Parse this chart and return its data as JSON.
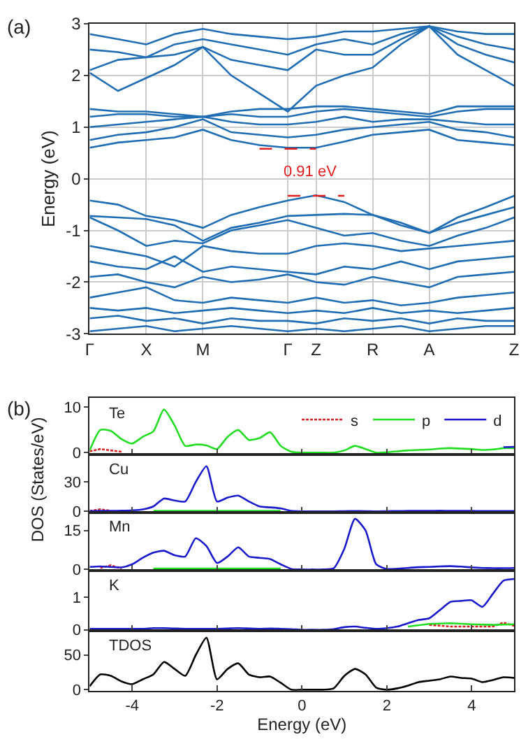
{
  "chart_data": [
    {
      "type": "line",
      "ylabel": "Energy (eV)",
      "annotations": [
        "(a)",
        "0.91 eV"
      ],
      "categories": [
        "Γ",
        null,
        "X",
        null,
        "M",
        null,
        null,
        "Γ",
        "Z",
        null,
        "R",
        null,
        "A",
        null,
        null,
        "Z"
      ],
      "ylim": [
        -3,
        3
      ],
      "yticks": [
        -3,
        -2,
        -1,
        0,
        1,
        2,
        3
      ],
      "grid": true,
      "series": [
        {
          "color": "#1f6db3",
          "values": [
            -0.42,
            -0.5,
            -0.72,
            -0.8,
            -0.95,
            -0.7,
            -0.55,
            -0.42,
            -0.32,
            -0.45,
            -0.7,
            -0.85,
            -1.05,
            -0.75,
            -0.55,
            -0.33
          ]
        },
        {
          "color": "#1f6db3",
          "values": [
            -0.72,
            -0.75,
            -0.78,
            -0.9,
            -1.2,
            -0.95,
            -0.85,
            -0.72,
            -0.7,
            -0.68,
            -0.7,
            -0.9,
            -1.05,
            -0.85,
            -0.7,
            -0.55
          ]
        },
        {
          "color": "#1f6db3",
          "values": [
            -0.75,
            -1.0,
            -1.3,
            -1.2,
            -1.25,
            -1.0,
            -0.9,
            -0.8,
            -0.95,
            -1.1,
            -1.05,
            -1.2,
            -1.3,
            -1.1,
            -0.95,
            -0.75
          ]
        },
        {
          "color": "#1f6db3",
          "values": [
            -1.3,
            -1.4,
            -1.5,
            -1.7,
            -1.3,
            -1.4,
            -1.45,
            -1.45,
            -1.3,
            -1.25,
            -1.3,
            -1.4,
            -1.35,
            -1.3,
            -1.25,
            -1.2
          ]
        },
        {
          "color": "#1f6db3",
          "values": [
            -1.6,
            -1.7,
            -1.75,
            -1.5,
            -1.8,
            -1.7,
            -1.75,
            -1.8,
            -1.85,
            -1.7,
            -1.75,
            -1.6,
            -1.75,
            -1.6,
            -1.55,
            -1.5
          ]
        },
        {
          "color": "#1f6db3",
          "values": [
            -1.9,
            -1.85,
            -2.0,
            -2.1,
            -1.9,
            -2.0,
            -1.95,
            -1.85,
            -2.0,
            -2.05,
            -1.9,
            -2.0,
            -2.1,
            -1.9,
            -1.85,
            -1.8
          ]
        },
        {
          "color": "#1f6db3",
          "values": [
            -2.3,
            -2.2,
            -2.1,
            -2.35,
            -2.4,
            -2.3,
            -2.35,
            -2.4,
            -2.3,
            -2.4,
            -2.35,
            -2.45,
            -2.4,
            -2.3,
            -2.25,
            -2.2
          ]
        },
        {
          "color": "#1f6db3",
          "values": [
            -2.5,
            -2.55,
            -2.5,
            -2.6,
            -2.55,
            -2.5,
            -2.55,
            -2.6,
            -2.55,
            -2.6,
            -2.5,
            -2.6,
            -2.55,
            -2.6,
            -2.55,
            -2.5
          ]
        },
        {
          "color": "#1f6db3",
          "values": [
            -2.7,
            -2.65,
            -2.75,
            -2.7,
            -2.8,
            -2.7,
            -2.75,
            -2.75,
            -2.8,
            -2.7,
            -2.75,
            -2.7,
            -2.8,
            -2.7,
            -2.75,
            -2.75
          ]
        },
        {
          "color": "#1f6db3",
          "values": [
            -2.95,
            -2.9,
            -2.85,
            -2.95,
            -2.9,
            -2.85,
            -2.9,
            -2.95,
            -2.9,
            -2.95,
            -2.9,
            -2.85,
            -2.95,
            -2.9,
            -2.85,
            -2.85
          ]
        },
        {
          "color": "#1f6db3",
          "values": [
            0.6,
            0.7,
            0.75,
            0.8,
            0.95,
            0.75,
            0.65,
            0.6,
            0.6,
            0.72,
            0.85,
            0.9,
            0.95,
            0.75,
            0.7,
            0.65
          ]
        },
        {
          "color": "#1f6db3",
          "values": [
            0.75,
            0.85,
            0.9,
            1.0,
            1.15,
            0.9,
            0.85,
            0.8,
            0.85,
            0.95,
            1.0,
            1.05,
            1.1,
            0.95,
            0.9,
            0.8
          ]
        },
        {
          "color": "#1f6db3",
          "values": [
            1.0,
            1.05,
            1.1,
            1.15,
            1.2,
            1.1,
            1.05,
            1.05,
            1.1,
            1.2,
            1.1,
            1.15,
            1.15,
            1.1,
            1.05,
            1.05
          ]
        },
        {
          "color": "#1f6db3",
          "values": [
            1.2,
            1.25,
            1.25,
            1.2,
            1.2,
            1.25,
            1.2,
            1.2,
            1.3,
            1.35,
            1.3,
            1.25,
            1.2,
            1.3,
            1.35,
            1.35
          ]
        },
        {
          "color": "#1f6db3",
          "values": [
            1.35,
            1.3,
            1.3,
            1.25,
            1.2,
            1.3,
            1.35,
            1.35,
            1.4,
            1.4,
            1.35,
            1.3,
            1.25,
            1.4,
            1.4,
            1.4
          ]
        },
        {
          "color": "#1f6db3",
          "values": [
            2.05,
            1.7,
            1.95,
            2.2,
            2.55,
            2.0,
            1.65,
            1.3,
            1.8,
            2.0,
            2.15,
            2.6,
            2.95,
            2.4,
            2.1,
            1.8
          ]
        },
        {
          "color": "#1f6db3",
          "values": [
            2.1,
            2.3,
            2.35,
            2.4,
            2.55,
            2.3,
            2.2,
            2.1,
            2.5,
            2.4,
            2.4,
            2.7,
            2.95,
            2.6,
            2.4,
            2.25
          ]
        },
        {
          "color": "#1f6db3",
          "values": [
            2.5,
            2.45,
            2.35,
            2.6,
            2.7,
            2.6,
            2.5,
            2.4,
            2.6,
            2.7,
            2.6,
            2.8,
            2.95,
            2.75,
            2.6,
            2.5
          ]
        },
        {
          "color": "#1f6db3",
          "values": [
            2.8,
            2.7,
            2.6,
            2.8,
            2.9,
            2.8,
            2.75,
            2.7,
            2.75,
            2.85,
            2.85,
            2.9,
            2.95,
            2.85,
            2.8,
            2.8
          ]
        },
        {
          "color": "#e02020",
          "line_style": "dashed",
          "values": [
            null,
            null,
            null,
            null,
            null,
            null,
            0.58,
            0.58,
            0.58,
            null,
            null,
            null,
            null,
            null,
            null,
            null
          ]
        },
        {
          "color": "#e02020",
          "line_style": "dashed",
          "values": [
            null,
            null,
            null,
            null,
            null,
            null,
            null,
            -0.33,
            -0.33,
            -0.33,
            null,
            null,
            null,
            null,
            null,
            null
          ]
        }
      ]
    },
    {
      "type": "line",
      "title": "Te",
      "annotations": [
        "(b)"
      ],
      "legend": "top right",
      "tick_labels": "y",
      "x": [
        -5,
        -4.75,
        -4.5,
        -4.25,
        -4,
        -3.75,
        -3.5,
        -3.25,
        -3,
        -2.75,
        -2.5,
        -2.25,
        -2,
        -1.75,
        -1.5,
        -1.25,
        -1,
        -0.75,
        -0.5,
        -0.25,
        0,
        0.25,
        0.5,
        0.75,
        1,
        1.25,
        1.5,
        1.75,
        2,
        2.25,
        2.5,
        2.75,
        3,
        3.25,
        3.5,
        3.75,
        4,
        4.25,
        4.5,
        4.75,
        5
      ],
      "xlim": [
        -5,
        5
      ],
      "xticks": [
        -4,
        -2,
        0,
        2,
        4
      ],
      "ylim": [
        -0.4,
        12
      ],
      "yticks": [
        0,
        10
      ],
      "series": [
        {
          "name": "s",
          "color": "#d42020",
          "line_style": "dotted",
          "x": [
            -5,
            -4.75,
            -4.5,
            -4.25
          ],
          "values": [
            0.3,
            0.8,
            0.5,
            0.2
          ]
        },
        {
          "name": "p",
          "color": "#22dd22",
          "values": [
            0.5,
            5.0,
            4.8,
            3.0,
            2.0,
            3.5,
            4.7,
            9.5,
            6.0,
            1.5,
            1.8,
            1.6,
            0.8,
            3.5,
            5.0,
            2.8,
            3.2,
            4.5,
            1.5,
            0.2,
            0,
            0,
            0,
            0,
            0.5,
            1.5,
            0.8,
            0,
            0.1,
            0.3,
            0.5,
            0.6,
            0.7,
            0.9,
            1.0,
            0.9,
            0.8,
            0.6,
            0.7,
            1.0,
            1.0
          ]
        },
        {
          "name": "d",
          "color": "#1a1acc",
          "x": [
            4.75,
            5
          ],
          "values": [
            1.2,
            1.3
          ]
        }
      ]
    },
    {
      "type": "line",
      "title": "Cu",
      "tick_labels": "y",
      "x": [
        -5,
        -4.75,
        -4.5,
        -4.25,
        -4,
        -3.75,
        -3.5,
        -3.25,
        -3,
        -2.75,
        -2.5,
        -2.25,
        -2,
        -1.75,
        -1.5,
        -1.25,
        -1,
        -0.75,
        -0.5,
        -0.25,
        0,
        0.25,
        0.5,
        0.75,
        1,
        1.25,
        1.5,
        1.75,
        2,
        2.25,
        2.5,
        2.75,
        3,
        3.25,
        3.5,
        3.75,
        4,
        4.25,
        4.5,
        4.75,
        5
      ],
      "xlim": [
        -5,
        5
      ],
      "xticks": [
        -4,
        -2,
        0,
        2,
        4
      ],
      "ylim": [
        -1,
        58
      ],
      "yticks": [
        0,
        30
      ],
      "series": [
        {
          "color": "#d42020",
          "line_style": "dotted",
          "x": [
            -5,
            -4.75,
            -4.5
          ],
          "values": [
            0.5,
            2,
            0.5
          ]
        },
        {
          "color": "#22dd22",
          "x": [
            -3.5,
            -3,
            -2.5,
            -2,
            -1.5,
            -1,
            -0.5
          ],
          "values": [
            0.5,
            0.5,
            0.5,
            0.5,
            0.5,
            0.5,
            0.5
          ]
        },
        {
          "color": "#1a1acc",
          "values": [
            0.3,
            0.5,
            0.4,
            0.6,
            1.0,
            2.0,
            5.0,
            13,
            11,
            10,
            30,
            46,
            10,
            14,
            16,
            10,
            5,
            4,
            3,
            0.5,
            0,
            0,
            0,
            0,
            0.2,
            0.3,
            0.2,
            0,
            0.2,
            0.3,
            0.4,
            0.5,
            0.5,
            0.6,
            0.5,
            0.4,
            0.4,
            0.3,
            0.3,
            0.3,
            0.3
          ]
        }
      ]
    },
    {
      "type": "line",
      "title": "Mn",
      "ylabel": "DOS (States/eV)",
      "tick_labels": "y",
      "x": [
        -5,
        -4.75,
        -4.5,
        -4.25,
        -4,
        -3.75,
        -3.5,
        -3.25,
        -3,
        -2.75,
        -2.5,
        -2.25,
        -2,
        -1.75,
        -1.5,
        -1.25,
        -1,
        -0.75,
        -0.5,
        -0.25,
        0,
        0.25,
        0.5,
        0.75,
        1,
        1.25,
        1.5,
        1.75,
        2,
        2.25,
        2.5,
        2.75,
        3,
        3.25,
        3.5,
        3.75,
        4,
        4.25,
        4.5,
        4.75,
        5
      ],
      "xlim": [
        -5,
        5
      ],
      "xticks": [
        -4,
        -2,
        0,
        2,
        4
      ],
      "ylim": [
        -0.5,
        22
      ],
      "yticks": [
        0,
        15
      ],
      "series": [
        {
          "color": "#d42020",
          "line_style": "dotted",
          "x": [
            -4.75,
            -4.5,
            -4.25
          ],
          "values": [
            0.6,
            1.6,
            0.4
          ]
        },
        {
          "color": "#22dd22",
          "x": [
            -3.5,
            -3,
            -2.5,
            -2,
            -1.5,
            -1,
            -0.5
          ],
          "values": [
            0.4,
            0.4,
            0.4,
            0.4,
            0.4,
            0.4,
            0.4
          ]
        },
        {
          "color": "#1a1acc",
          "values": [
            1,
            1.2,
            1.0,
            0.8,
            2,
            4.5,
            6.5,
            7.2,
            5.5,
            5.0,
            12,
            9,
            2.5,
            5,
            8.5,
            5,
            4.5,
            4,
            2,
            0.2,
            0,
            0,
            0,
            0.5,
            8,
            19.5,
            15,
            2,
            0.2,
            0.3,
            0.6,
            0.9,
            1,
            1.2,
            1.3,
            1.1,
            0.8,
            0.6,
            0.5,
            0.5,
            0.6
          ]
        }
      ]
    },
    {
      "type": "line",
      "title": "K",
      "tick_labels": "y",
      "x": [
        -5,
        -4.75,
        -4.5,
        -4.25,
        -4,
        -3.75,
        -3.5,
        -3.25,
        -3,
        -2.75,
        -2.5,
        -2.25,
        -2,
        -1.75,
        -1.5,
        -1.25,
        -1,
        -0.75,
        -0.5,
        -0.25,
        0,
        0.25,
        0.5,
        0.75,
        1,
        1.25,
        1.5,
        1.75,
        2,
        2.25,
        2.5,
        2.75,
        3,
        3.25,
        3.5,
        3.75,
        4,
        4.25,
        4.5,
        4.75,
        5
      ],
      "xlim": [
        -5,
        5
      ],
      "xticks": [
        -4,
        -2,
        0,
        2,
        4
      ],
      "ylim": [
        -0.03,
        1.8
      ],
      "yticks": [
        0,
        1
      ],
      "series": [
        {
          "color": "#d42020",
          "line_style": "dotted",
          "x": [
            3,
            3.5,
            4,
            4.5,
            4.75,
            5
          ],
          "values": [
            0.15,
            0.1,
            0.1,
            0.1,
            0.22,
            0.12
          ]
        },
        {
          "color": "#22dd22",
          "x": [
            2.5,
            3,
            3.5,
            4,
            4.5,
            5
          ],
          "values": [
            0.1,
            0.18,
            0.2,
            0.17,
            0.15,
            0.17
          ]
        },
        {
          "color": "#1a1acc",
          "values": [
            0.03,
            0.03,
            0.03,
            0.03,
            0.03,
            0.03,
            0.05,
            0.05,
            0.04,
            0.03,
            0.03,
            0.03,
            0.03,
            0.04,
            0.05,
            0.04,
            0.03,
            0.04,
            0.03,
            0.02,
            0,
            0,
            0,
            0.02,
            0.08,
            0.1,
            0.06,
            0.03,
            0.05,
            0.1,
            0.2,
            0.3,
            0.35,
            0.6,
            0.85,
            0.88,
            0.9,
            0.7,
            1.1,
            1.5,
            1.55
          ]
        }
      ]
    },
    {
      "type": "line",
      "title": "TDOS",
      "xlabel": "Energy (eV)",
      "x": [
        -5,
        -4.75,
        -4.5,
        -4.25,
        -4,
        -3.75,
        -3.5,
        -3.25,
        -3,
        -2.75,
        -2.5,
        -2.25,
        -2,
        -1.75,
        -1.5,
        -1.25,
        -1,
        -0.75,
        -0.5,
        -0.25,
        0,
        0.25,
        0.5,
        0.75,
        1,
        1.25,
        1.5,
        1.75,
        2,
        2.25,
        2.5,
        2.75,
        3,
        3.25,
        3.5,
        3.75,
        4,
        4.25,
        4.5,
        4.75,
        5
      ],
      "xlim": [
        -5,
        5
      ],
      "xticks": [
        -4,
        -2,
        0,
        2,
        4
      ],
      "ylim": [
        -1.5,
        85
      ],
      "yticks": [
        0,
        50
      ],
      "series": [
        {
          "color": "#000000",
          "values": [
            5,
            22,
            20,
            12,
            8,
            15,
            22,
            40,
            30,
            20,
            50,
            75,
            15,
            30,
            38,
            22,
            18,
            19,
            10,
            0,
            0,
            0,
            0,
            2,
            20,
            30,
            22,
            3,
            0,
            2,
            6,
            11,
            13,
            15,
            19,
            17,
            16,
            11,
            14,
            18,
            17
          ]
        }
      ]
    }
  ]
}
